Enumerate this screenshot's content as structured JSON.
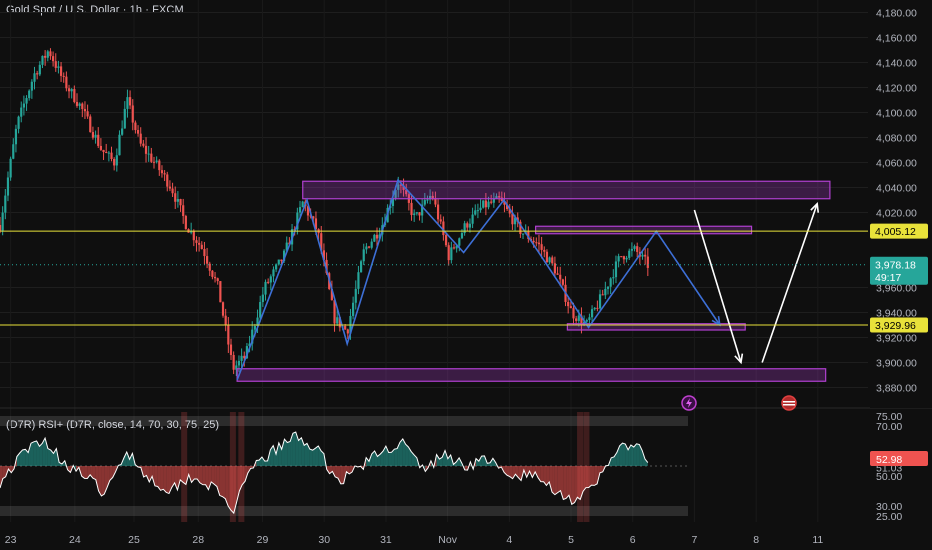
{
  "header": {
    "symbol_line": "Gold Spot / U.S. Dollar · 1h · FXCM"
  },
  "rsi_panel": {
    "title": "(D7R) RSI+ (D7R, close, 14, 70, 30, 75, 25)"
  },
  "colors": {
    "background": "#0f0f0f",
    "bull": "#26a69a",
    "bear": "#ef5350",
    "zone": "#b040d0",
    "pattern_line": "#3d6fd6",
    "arrow": "#ffffff",
    "level_line": "#e8e23a",
    "rsi_line": "#ffffff"
  },
  "chart_data": [
    {
      "type": "candlestick",
      "title": "Gold Spot / U.S. Dollar · 1h · FXCM",
      "ylim": [
        3870,
        4190
      ],
      "y_ticks": [
        "4,180.00",
        "4,160.00",
        "4,140.00",
        "4,120.00",
        "4,100.00",
        "4,080.00",
        "4,060.00",
        "4,040.00",
        "4,020.00",
        "3,960.00",
        "3,940.00",
        "3,920.00",
        "3,900.00",
        "3,880.00"
      ],
      "x_tick_labels": [
        "23",
        "24",
        "25",
        "28",
        "29",
        "30",
        "31",
        "Nov",
        "4",
        "5",
        "6",
        "7",
        "8",
        "11"
      ],
      "price_path": [
        {
          "t": 0.0,
          "p": 4010
        },
        {
          "t": 0.8,
          "p": 4090
        },
        {
          "t": 1.6,
          "p": 4130
        },
        {
          "t": 2.3,
          "p": 4150
        },
        {
          "t": 3.0,
          "p": 4125
        },
        {
          "t": 3.8,
          "p": 4105
        },
        {
          "t": 4.8,
          "p": 4070
        },
        {
          "t": 5.4,
          "p": 4060
        },
        {
          "t": 6.0,
          "p": 4110
        },
        {
          "t": 6.6,
          "p": 4075
        },
        {
          "t": 7.3,
          "p": 4060
        },
        {
          "t": 8.1,
          "p": 4040
        },
        {
          "t": 8.8,
          "p": 4010
        },
        {
          "t": 9.6,
          "p": 3990
        },
        {
          "t": 10.3,
          "p": 3960
        },
        {
          "t": 11.0,
          "p": 3895
        },
        {
          "t": 11.6,
          "p": 3905
        },
        {
          "t": 12.5,
          "p": 3960
        },
        {
          "t": 13.4,
          "p": 3985
        },
        {
          "t": 14.3,
          "p": 4028
        },
        {
          "t": 15.0,
          "p": 4005
        },
        {
          "t": 15.8,
          "p": 3935
        },
        {
          "t": 16.4,
          "p": 3925
        },
        {
          "t": 17.2,
          "p": 3990
        },
        {
          "t": 18.0,
          "p": 4008
        },
        {
          "t": 18.8,
          "p": 4045
        },
        {
          "t": 19.6,
          "p": 4015
        },
        {
          "t": 20.4,
          "p": 4035
        },
        {
          "t": 21.2,
          "p": 3985
        },
        {
          "t": 22.0,
          "p": 4010
        },
        {
          "t": 22.8,
          "p": 4025
        },
        {
          "t": 23.6,
          "p": 4030
        },
        {
          "t": 24.6,
          "p": 4005
        },
        {
          "t": 25.4,
          "p": 3995
        },
        {
          "t": 26.2,
          "p": 3975
        },
        {
          "t": 27.0,
          "p": 3940
        },
        {
          "t": 27.7,
          "p": 3930
        },
        {
          "t": 28.5,
          "p": 3955
        },
        {
          "t": 29.3,
          "p": 3985
        },
        {
          "t": 30.0,
          "p": 3990
        },
        {
          "t": 30.6,
          "p": 3978
        }
      ],
      "zones": [
        {
          "t0": 14.3,
          "t1": 39.2,
          "p_low": 4031,
          "p_high": 4045
        },
        {
          "t0": 25.3,
          "t1": 35.5,
          "p_low": 4003,
          "p_high": 4009
        },
        {
          "t0": 26.8,
          "t1": 35.2,
          "p_low": 3926,
          "p_high": 3931
        },
        {
          "t0": 11.2,
          "t1": 39.0,
          "p_low": 3885,
          "p_high": 3895
        }
      ],
      "pattern_path": [
        {
          "t": 11.2,
          "p": 3886
        },
        {
          "t": 14.5,
          "p": 4030
        },
        {
          "t": 16.4,
          "p": 3915
        },
        {
          "t": 18.8,
          "p": 4046
        },
        {
          "t": 21.9,
          "p": 3988
        },
        {
          "t": 23.8,
          "p": 4030
        },
        {
          "t": 27.8,
          "p": 3928
        },
        {
          "t": 31.0,
          "p": 4005
        },
        {
          "t": 34.0,
          "p": 3930
        }
      ],
      "arrows": [
        {
          "t0": 32.8,
          "p0": 4022,
          "t1": 35.0,
          "p1": 3900
        },
        {
          "t0": 36.0,
          "p0": 3900,
          "t1": 38.6,
          "p1": 4027
        }
      ],
      "level_lines": [
        4005.12,
        3929.96
      ],
      "current_price": 3978.18,
      "price_labels": [
        {
          "text": "4,005.12",
          "price": 4005.12,
          "style": "level"
        },
        {
          "text": "3,978.18",
          "sub": "49:17",
          "price": 3978.18,
          "style": "current"
        },
        {
          "text": "3,929.96",
          "price": 3929.96,
          "style": "level"
        }
      ]
    },
    {
      "type": "line",
      "title": "(D7R) RSI+ (D7R, close, 14, 70, 30, 75, 25)",
      "ylim": [
        22,
        77
      ],
      "y_ticks": [
        "75.00",
        "70.00",
        "53.22",
        "51.03",
        "50.00",
        "30.00",
        "25.00"
      ],
      "current_value": "52.98",
      "rsi_path": [
        {
          "t": 0.0,
          "v": 42
        },
        {
          "t": 1.0,
          "v": 55
        },
        {
          "t": 2.0,
          "v": 64
        },
        {
          "t": 3.0,
          "v": 52
        },
        {
          "t": 4.0,
          "v": 45
        },
        {
          "t": 5.0,
          "v": 36
        },
        {
          "t": 6.0,
          "v": 58
        },
        {
          "t": 7.0,
          "v": 44
        },
        {
          "t": 8.0,
          "v": 38
        },
        {
          "t": 9.0,
          "v": 45
        },
        {
          "t": 10.0,
          "v": 40
        },
        {
          "t": 11.0,
          "v": 28
        },
        {
          "t": 12.0,
          "v": 50
        },
        {
          "t": 13.0,
          "v": 58
        },
        {
          "t": 14.0,
          "v": 65
        },
        {
          "t": 15.0,
          "v": 58
        },
        {
          "t": 16.0,
          "v": 42
        },
        {
          "t": 17.0,
          "v": 50
        },
        {
          "t": 18.0,
          "v": 57
        },
        {
          "t": 19.0,
          "v": 62
        },
        {
          "t": 20.0,
          "v": 48
        },
        {
          "t": 21.0,
          "v": 56
        },
        {
          "t": 22.0,
          "v": 50
        },
        {
          "t": 23.0,
          "v": 54
        },
        {
          "t": 24.0,
          "v": 44
        },
        {
          "t": 25.0,
          "v": 46
        },
        {
          "t": 26.0,
          "v": 40
        },
        {
          "t": 27.0,
          "v": 33
        },
        {
          "t": 28.0,
          "v": 38
        },
        {
          "t": 29.0,
          "v": 57
        },
        {
          "t": 30.0,
          "v": 61
        },
        {
          "t": 30.6,
          "v": 52
        }
      ],
      "oversold_bars": [
        8.7,
        11.0,
        11.4,
        27.4,
        27.7
      ]
    }
  ]
}
